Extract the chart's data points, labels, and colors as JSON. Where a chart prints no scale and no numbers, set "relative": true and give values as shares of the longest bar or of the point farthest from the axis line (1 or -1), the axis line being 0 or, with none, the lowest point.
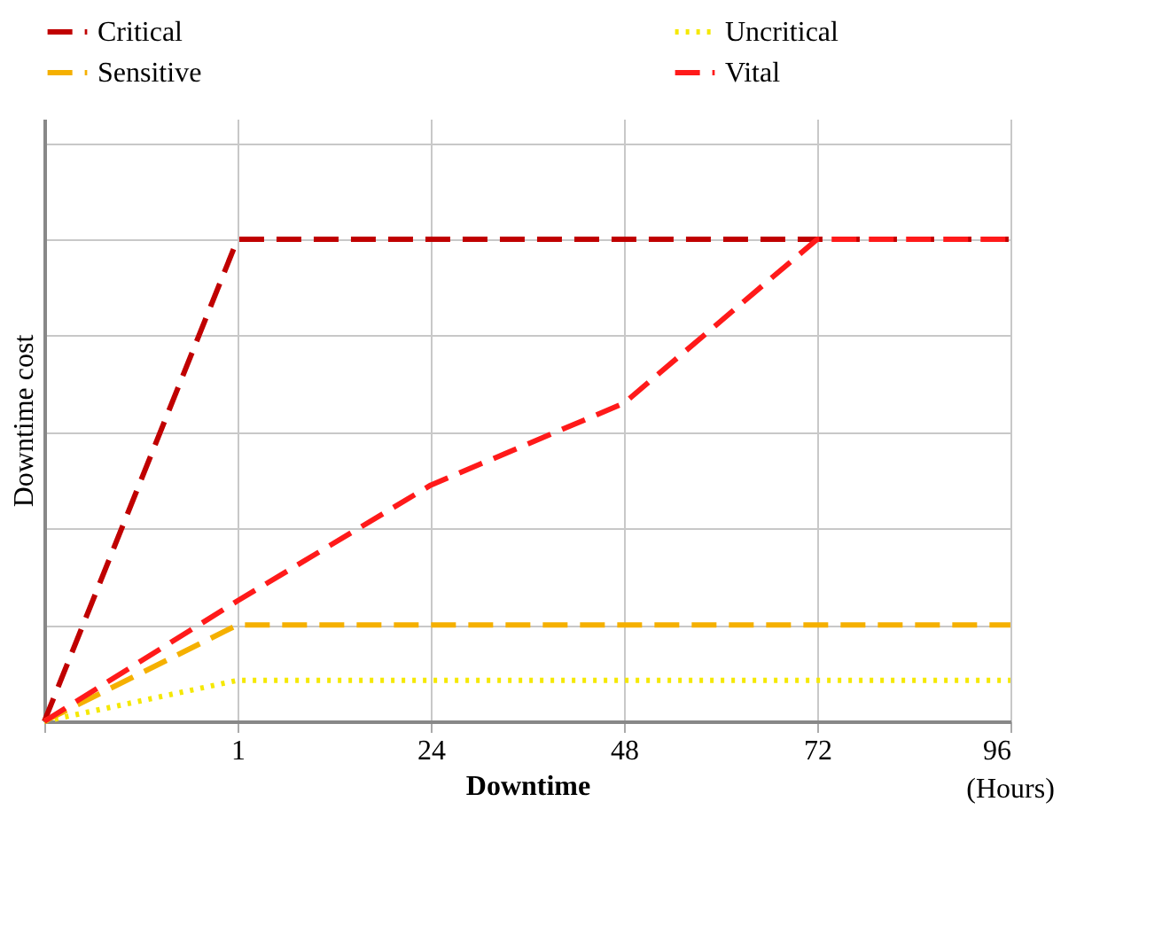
{
  "chart_data": {
    "type": "line",
    "relative": true,
    "xlabel": "Downtime",
    "ylabel": "Downtime cost",
    "categories": [
      null,
      "1",
      "24",
      "48",
      "72",
      "96"
    ],
    "series": [
      {
        "name": "Critical",
        "color": "#c00000",
        "line_style": "dashed",
        "values": [
          0,
          1,
          1,
          1,
          1,
          1
        ]
      },
      {
        "name": "Uncritical",
        "color": "#f5e800",
        "line_style": "dotted",
        "values": [
          0,
          0.085,
          0.085,
          0.085,
          0.085,
          0.085
        ]
      },
      {
        "name": "Sensitive",
        "color": "#f5b000",
        "line_style": "dashed",
        "values": [
          0,
          0.2,
          0.2,
          0.2,
          0.2,
          0.2
        ]
      },
      {
        "name": "Vital",
        "color": "#ff1a1a",
        "line_style": "dashed",
        "values": [
          0,
          0.25,
          0.49,
          0.66,
          1,
          1
        ]
      }
    ],
    "annotations": [
      "(Hours)"
    ],
    "grid": true,
    "legend": "top",
    "marker": "none"
  }
}
